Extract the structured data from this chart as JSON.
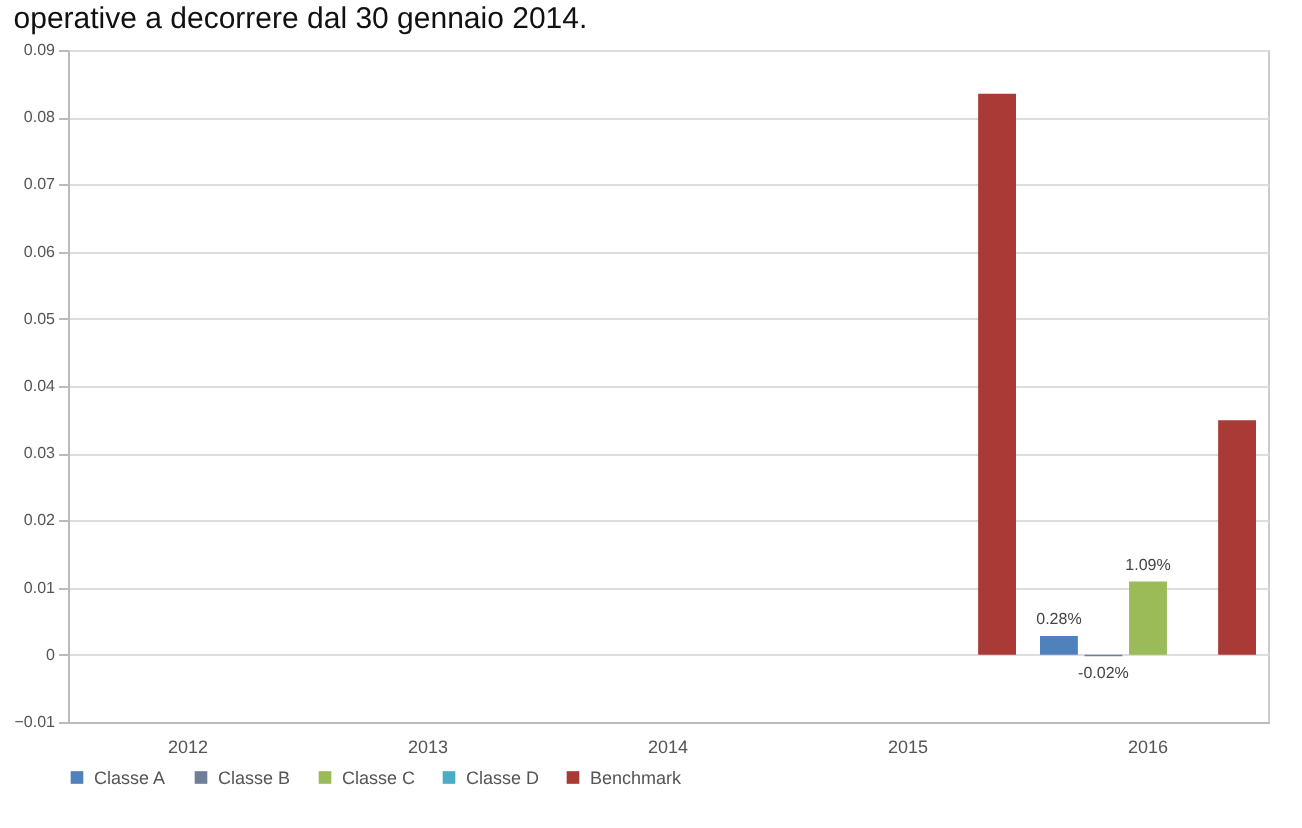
{
  "chart_data": {
    "type": "bar",
    "annotations": [
      "operative a decorrere dal 30 gennaio 2014."
    ],
    "categories": [
      "2012",
      "2013",
      "2014",
      "2015",
      "2016"
    ],
    "series": [
      {
        "name": "Classe A",
        "color": "#4f81bd",
        "values": [
          null,
          null,
          null,
          null,
          0.0028
        ],
        "value_labels": [
          null,
          null,
          null,
          null,
          "0.28%"
        ]
      },
      {
        "name": "Classe B",
        "color": "#6f7f9a",
        "values": [
          null,
          null,
          null,
          null,
          -0.0002
        ],
        "value_labels": [
          null,
          null,
          null,
          null,
          "-0.02%"
        ]
      },
      {
        "name": "Classe C",
        "color": "#9bbb59",
        "values": [
          null,
          null,
          null,
          null,
          0.0109
        ],
        "value_labels": [
          null,
          null,
          null,
          null,
          "1.09%"
        ]
      },
      {
        "name": "Classe D",
        "color": "#4bacc6",
        "values": [
          null,
          null,
          null,
          null,
          null
        ]
      },
      {
        "name": "Benchmark",
        "color": "#a93a35",
        "values": [
          null,
          null,
          null,
          0.0835,
          0.0349
        ]
      }
    ],
    "ylim": [
      -0.01,
      0.09
    ],
    "yticks": [
      -0.01,
      0,
      0.01,
      0.02,
      0.03,
      0.04,
      0.05,
      0.06,
      0.07,
      0.08,
      0.09
    ],
    "grid": "y",
    "legend": "bottom"
  }
}
